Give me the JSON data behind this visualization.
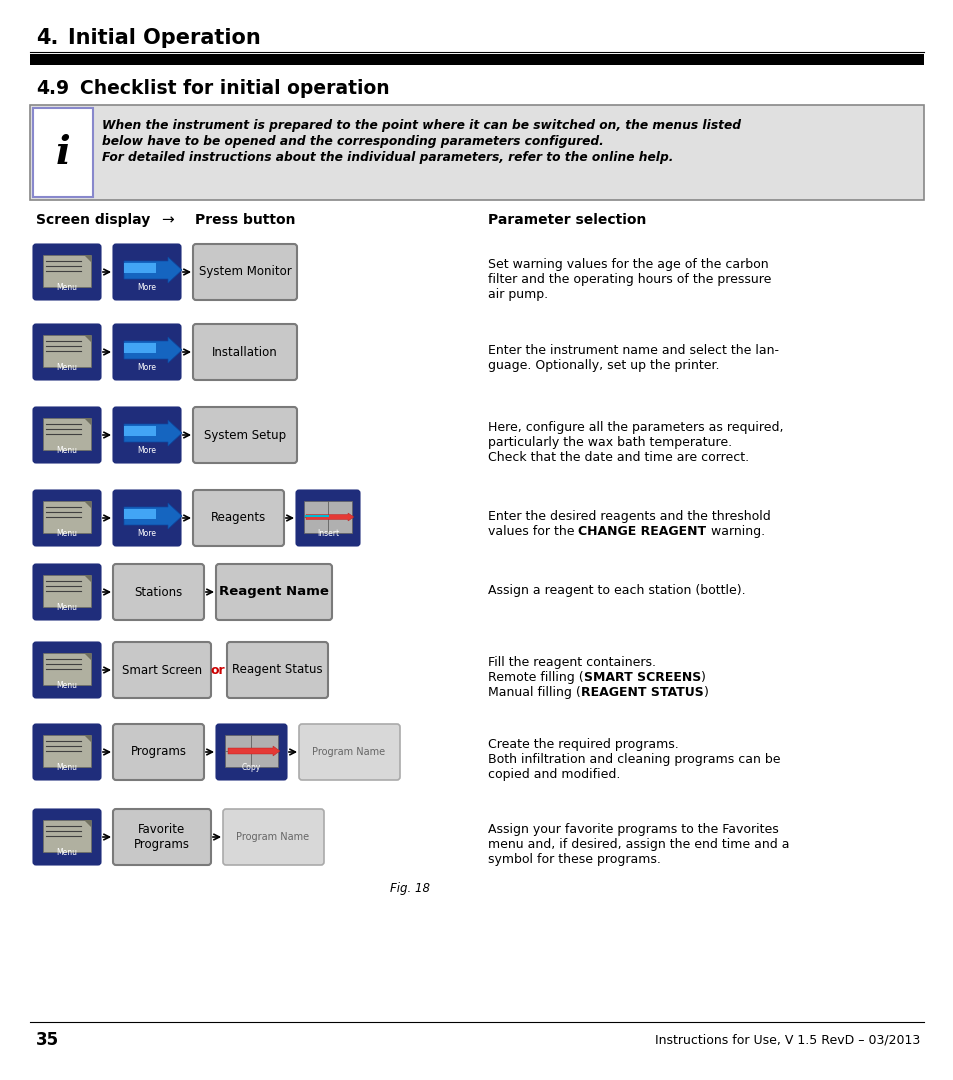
{
  "title_num": "4.",
  "title_text": "Initial Operation",
  "section_num": "4.9",
  "section_text": "Checklist for initial operation",
  "info_line1": "When the instrument is prepared to the point where it can be switched on, the menus listed",
  "info_line2": "below have to be opened and the corresponding parameters configured.",
  "info_line3": "For detailed instructions about the individual parameters, refer to the online help.",
  "col_left": "Screen display",
  "col_arrow": "→",
  "col_mid": "Press button",
  "col_right": "Parameter selection",
  "fig_label": "Fig. 18",
  "page_num": "35",
  "footer_text": "Instructions for Use, V 1.5 RevD – 03/2013",
  "dark_blue": "#1f2d7b",
  "btn_gray": "#c8c8c8",
  "btn_gray_edge": "#7a7a7a",
  "btn_blue_arrow": "#2979FF",
  "or_color": "#cc0000",
  "info_bg": "#e0e0e0",
  "row_descriptions": [
    [
      "Set warning values for the age of the carbon",
      "filter and the operating hours of the pressure",
      "air pump."
    ],
    [
      "Enter the instrument name and select the lan-",
      "guage. Optionally, set up the printer.",
      ""
    ],
    [
      "Here, configure all the parameters as required,",
      "particularly the wax bath temperature.",
      "Check that the date and time are correct."
    ],
    [
      "Enter the desired reagents and the threshold",
      "values for the {b}CHANGE REAGENT{/b} warning.",
      ""
    ],
    [
      "Assign a reagent to each station (bottle).",
      "",
      ""
    ],
    [
      "Fill the reagent containers.",
      "Remote filling ({b}SMART SCREENS{/b})",
      "Manual filling ({b}REAGENT STATUS{/b})"
    ],
    [
      "Create the required programs.",
      "Both infiltration and cleaning programs can be",
      "copied and modified."
    ],
    [
      "Assign your favorite programs to the Favorites",
      "menu and, if desired, assign the end time and a",
      "symbol for these programs."
    ]
  ]
}
